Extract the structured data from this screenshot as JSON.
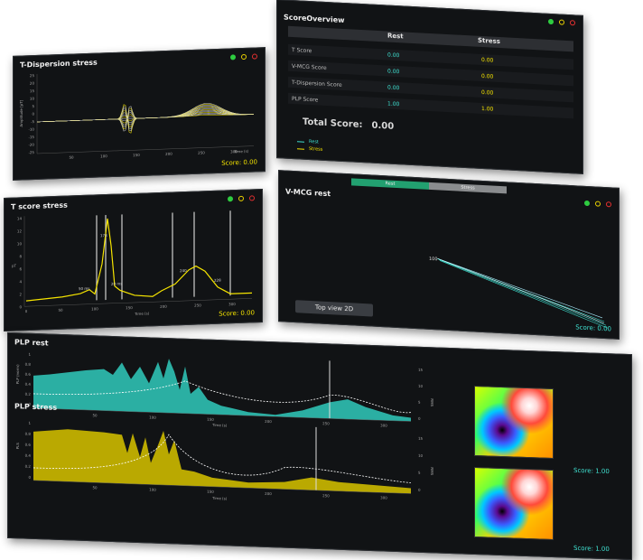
{
  "panels": {
    "tdisp": {
      "title": "T-Dispersion stress",
      "ylabel": "Amplitude [pT]",
      "xlabel": "Time (s)",
      "score": "Score: 0.00",
      "yticks": [
        "25",
        "20",
        "15",
        "10",
        "5",
        "0",
        "-5",
        "-10",
        "-15",
        "-20",
        "-25"
      ],
      "xticks": [
        "50",
        "100",
        "150",
        "200",
        "250",
        "300"
      ]
    },
    "overview": {
      "title": "ScoreOverview",
      "headers": {
        "rest": "Rest",
        "stress": "Stress"
      },
      "rows": [
        {
          "label": "T Score",
          "rest": "0.00",
          "stress": "0.00"
        },
        {
          "label": "V-MCG Score",
          "rest": "0.00",
          "stress": "0.00"
        },
        {
          "label": "T-Dispersion Score",
          "rest": "0.00",
          "stress": "0.00"
        },
        {
          "label": "PLP Score",
          "rest": "1.00",
          "stress": "1.00"
        }
      ],
      "total_label": "Total Score:",
      "total_value": "0.00",
      "legend": [
        {
          "label": "Rest",
          "color": "#3fe0d0"
        },
        {
          "label": "Stress",
          "color": "#f5e400"
        }
      ]
    },
    "tscore": {
      "title": "T score stress",
      "score": "Score: 0.00",
      "xlabel": "Time (s)",
      "ylabel": "pT",
      "yticks": [
        "14",
        "12",
        "10",
        "8",
        "6",
        "4",
        "2",
        "0"
      ],
      "xticks": [
        "0",
        "50",
        "100",
        "150",
        "200",
        "250",
        "300"
      ],
      "annotations": [
        "50 ms",
        "178",
        "20 ms",
        "240",
        "228"
      ]
    },
    "vmcg": {
      "title": "V-MCG rest",
      "tabs": [
        "Rest",
        "Stress"
      ],
      "button": "Top view 2D",
      "score": "Score: 0.00",
      "point_label": "100"
    },
    "plp": {
      "rest_title": "PLP rest",
      "stress_title": "PLP stress",
      "rest_ylabel": "PLP (norm)",
      "stress_ylabel": "PLS",
      "right_label": "RMS",
      "xlabel": "Time (s)",
      "rest_score": "Score: 1.00",
      "stress_score": "Score: 1.00",
      "xticks_rest": [
        "50",
        "100",
        "150",
        "200",
        "250",
        "300"
      ],
      "xticks_stress": [
        "50",
        "100",
        "150",
        "200",
        "250",
        "300"
      ],
      "yticks": [
        "1",
        "0.8",
        "0.6",
        "0.4",
        "0.2",
        "0"
      ],
      "rticks": [
        "15",
        "10",
        "5",
        "0"
      ]
    }
  },
  "colors": {
    "rest": "#3fe0d0",
    "stress": "#f5e400",
    "panel_bg": "#111315"
  }
}
